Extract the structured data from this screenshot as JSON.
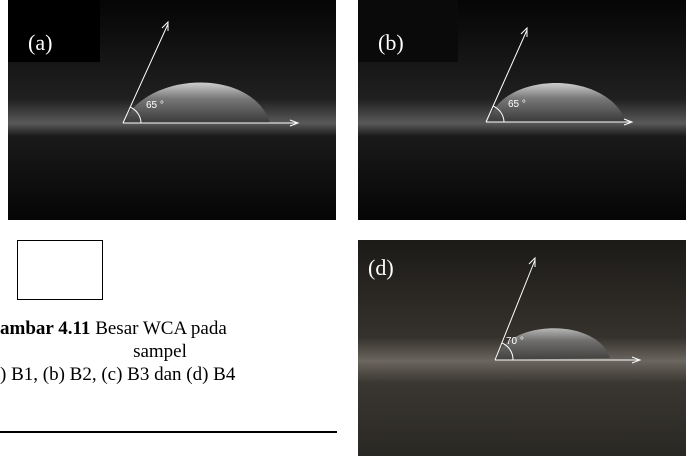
{
  "panels": [
    {
      "label": "(a)",
      "angle": "65 °"
    },
    {
      "label": "(b)",
      "angle": "65 °"
    },
    {
      "label": "(d)",
      "angle": "70 °"
    }
  ],
  "caption": {
    "label": "ambar 4.11",
    "text": " Besar WCA pada",
    "line2": "sampel",
    "line3": ") B1, (b) B2, (c) B3 dan (d) B4"
  }
}
